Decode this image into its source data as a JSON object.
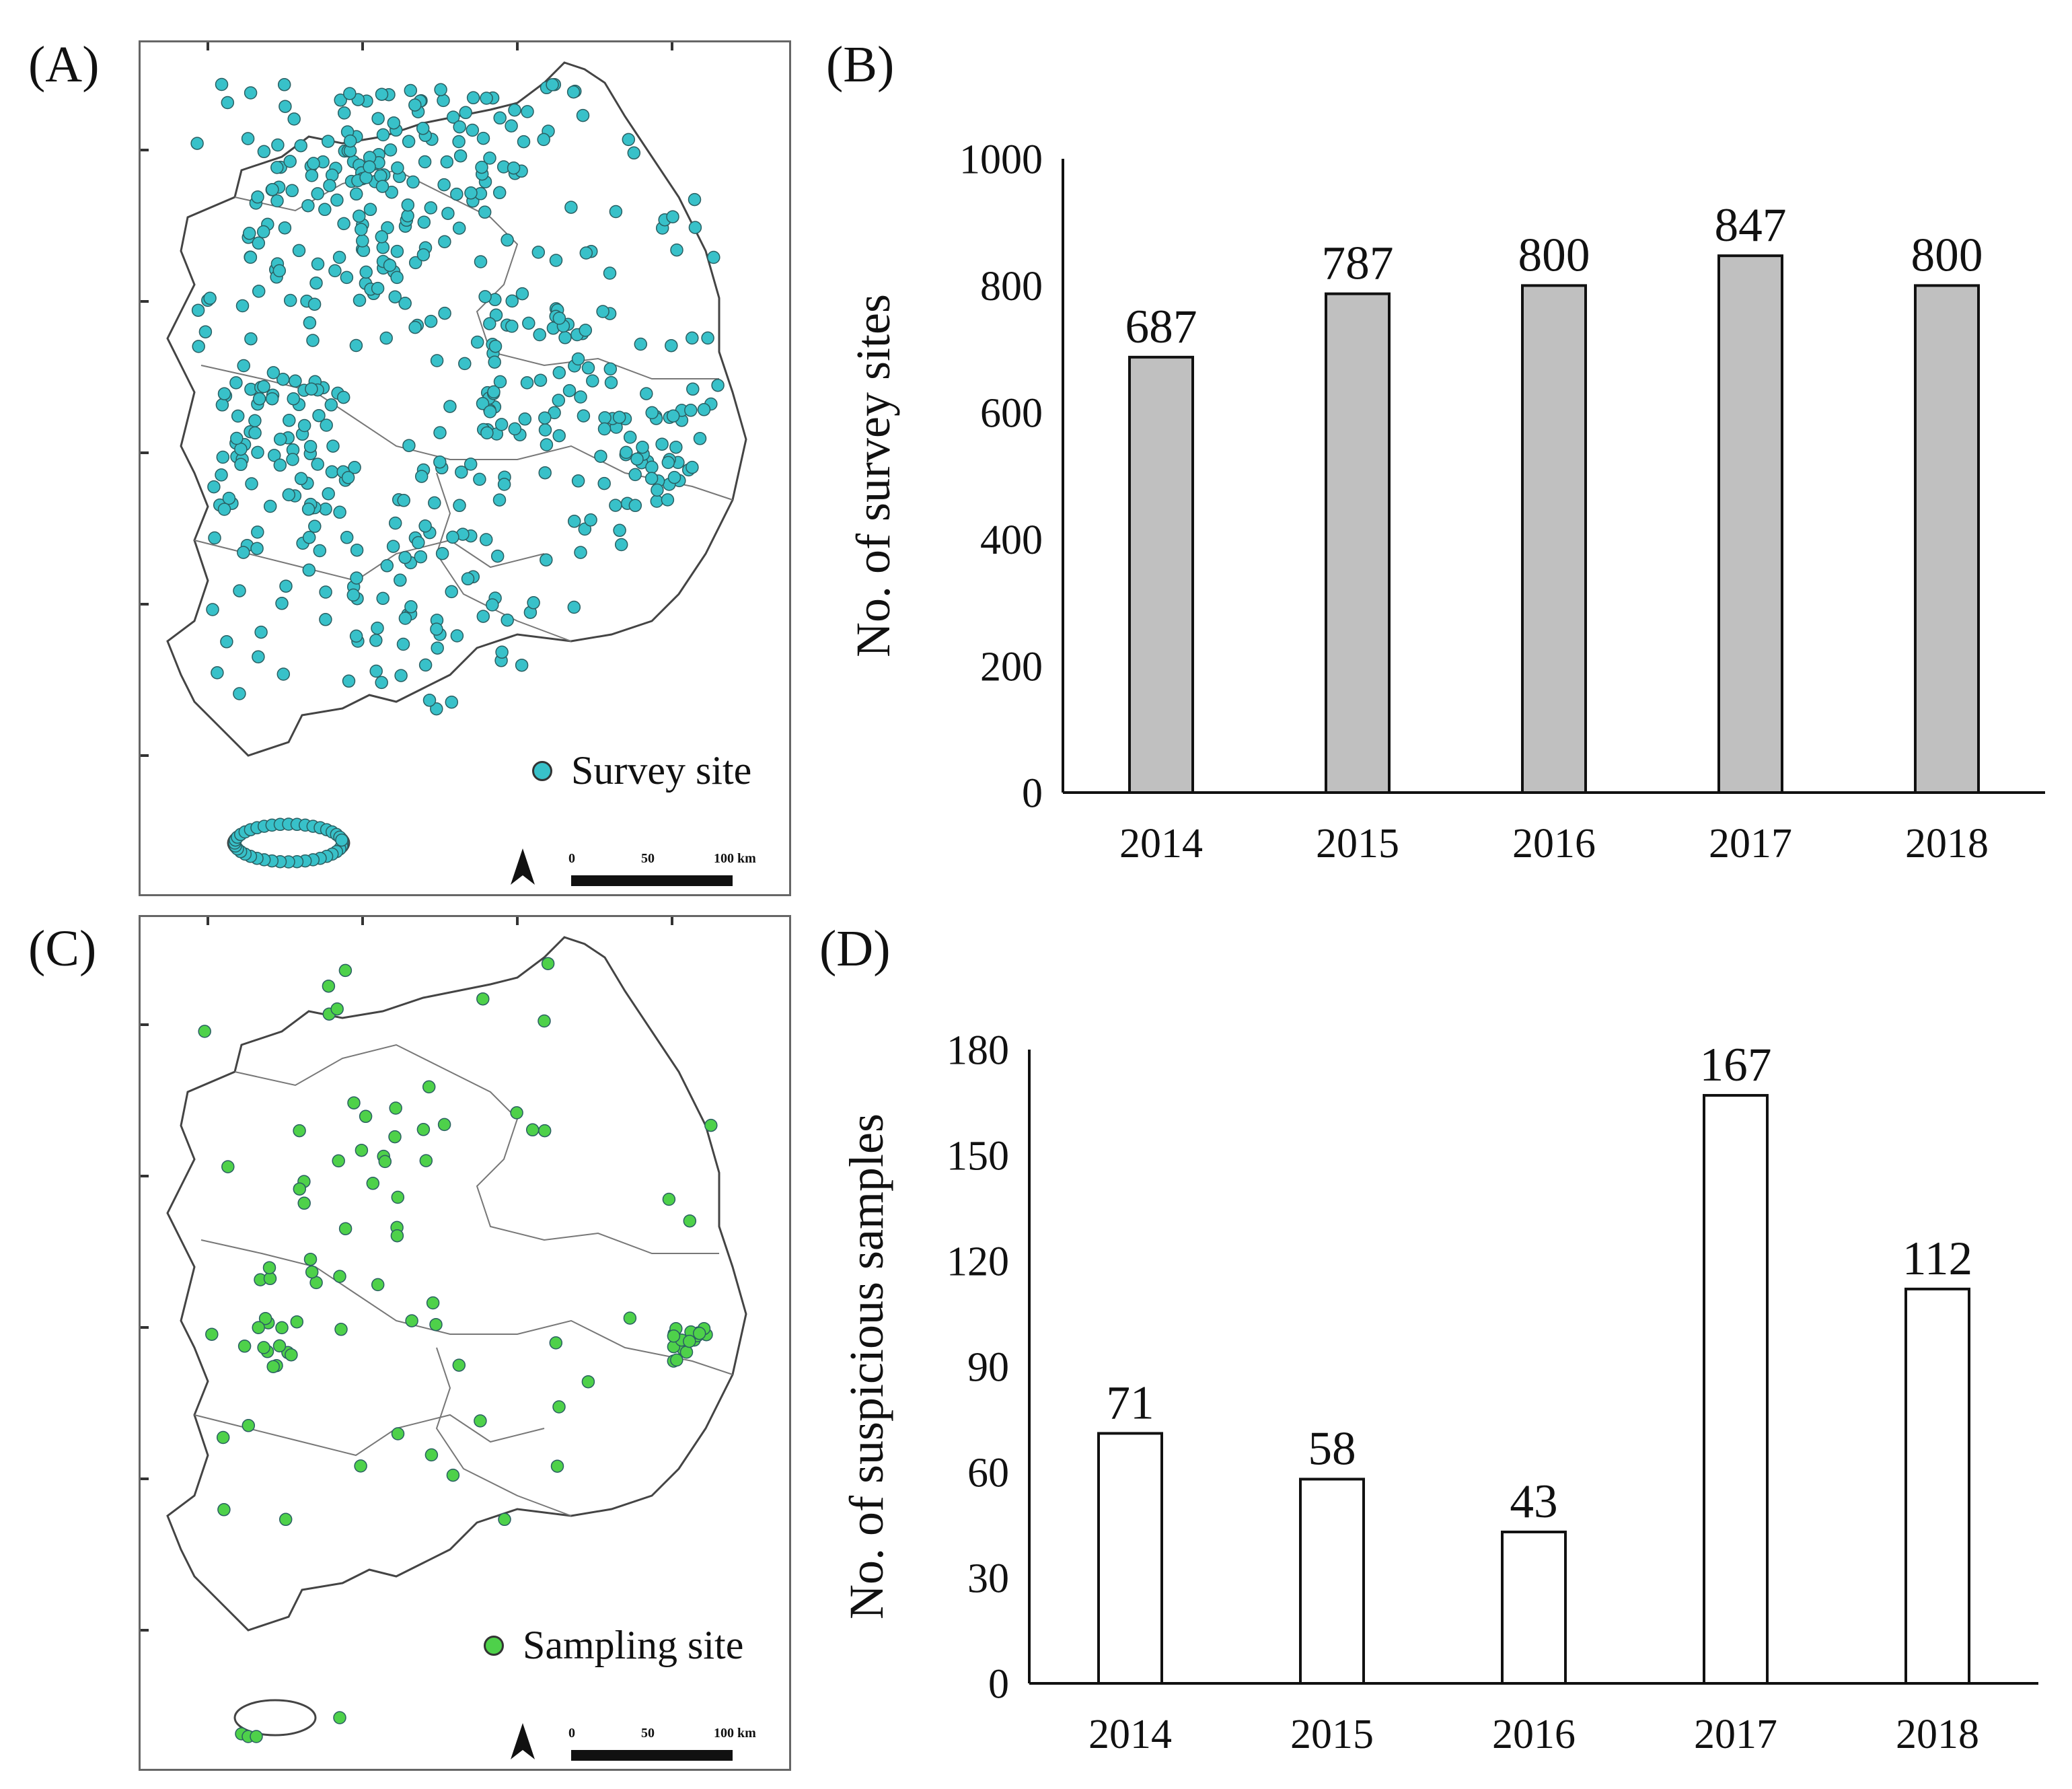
{
  "figure": {
    "panels": {
      "a": {
        "label": "(A)",
        "legend": "Survey site",
        "color": "#38c1c9",
        "scale": {
          "ticks": [
            "0",
            "50",
            "100 km"
          ]
        }
      },
      "b": {
        "label": "(B)"
      },
      "c": {
        "label": "(C)",
        "legend": "Sampling site",
        "color": "#4ed14a",
        "scale": {
          "ticks": [
            "0",
            "50",
            "100 km"
          ]
        }
      },
      "d": {
        "label": "(D)"
      }
    }
  },
  "chart_data": [
    {
      "id": "B",
      "type": "bar",
      "categories": [
        "2014",
        "2015",
        "2016",
        "2017",
        "2018"
      ],
      "values": [
        687,
        787,
        800,
        847,
        800
      ],
      "data_labels": [
        "687",
        "787",
        "800",
        "847",
        "800"
      ],
      "yticks": [
        "0",
        "200",
        "400",
        "600",
        "800",
        "1000"
      ],
      "ytick_values": [
        0,
        200,
        400,
        600,
        800,
        1000
      ],
      "ylim": [
        0,
        1000
      ],
      "ylabel": "No. of survey sites",
      "xlabel": "",
      "bar_color": "#c0c0c0",
      "grid": false
    },
    {
      "id": "D",
      "type": "bar",
      "categories": [
        "2014",
        "2015",
        "2016",
        "2017",
        "2018"
      ],
      "values": [
        71,
        58,
        43,
        167,
        112
      ],
      "data_labels": [
        "71",
        "58",
        "43",
        "167",
        "112"
      ],
      "yticks": [
        "0",
        "30",
        "60",
        "90",
        "120",
        "150",
        "180"
      ],
      "ytick_values": [
        0,
        30,
        60,
        90,
        120,
        150,
        180
      ],
      "ylim": [
        0,
        180
      ],
      "ylabel": "No. of suspicious samples",
      "xlabel": "",
      "bar_color": "#ffffff",
      "grid": false
    }
  ]
}
